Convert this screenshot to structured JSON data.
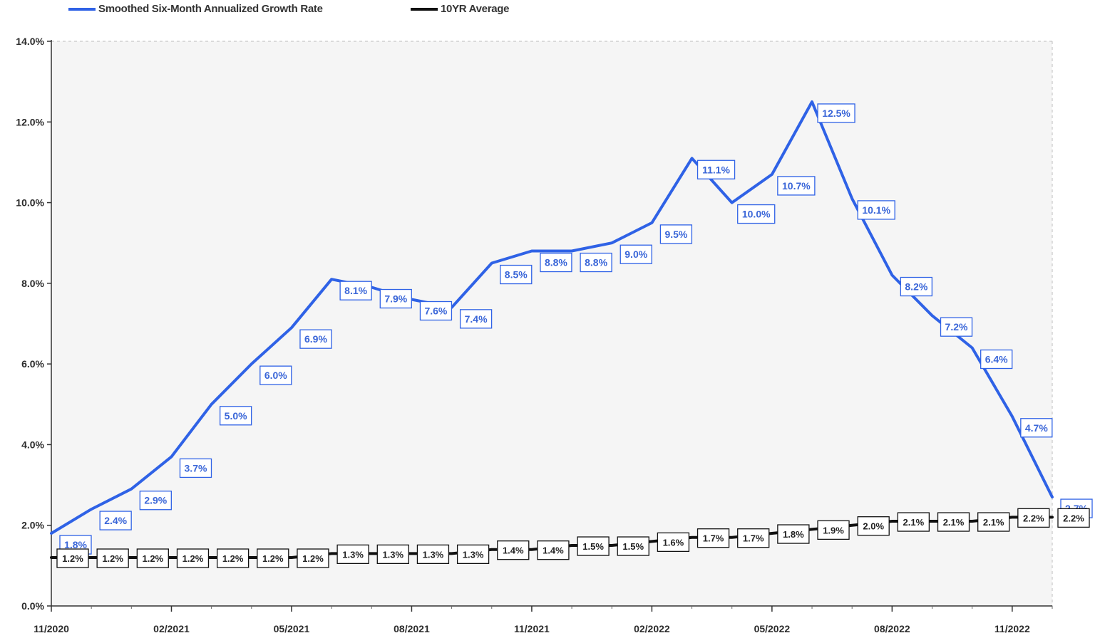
{
  "legend": {
    "series1_label": "Smoothed Six-Month Annualized Growth Rate",
    "series2_label": "10YR Average"
  },
  "colors": {
    "series1": "#2f62e6",
    "series2": "#111111",
    "plot_background": "#f5f5f5"
  },
  "chart_data": {
    "type": "line",
    "title": "",
    "xlabel": "",
    "ylabel": "",
    "ylim": [
      0,
      14
    ],
    "y_ticks": [
      "0.0%",
      "2.0%",
      "4.0%",
      "6.0%",
      "8.0%",
      "10.0%",
      "12.0%",
      "14.0%"
    ],
    "x_tick_labels": [
      "11/2020",
      "02/2021",
      "05/2021",
      "08/2021",
      "11/2021",
      "02/2022",
      "05/2022",
      "08/2022",
      "11/2022"
    ],
    "x": [
      "11/2020",
      "12/2020",
      "01/2021",
      "02/2021",
      "03/2021",
      "04/2021",
      "05/2021",
      "06/2021",
      "07/2021",
      "08/2021",
      "09/2021",
      "10/2021",
      "11/2021",
      "12/2021",
      "01/2022",
      "02/2022",
      "03/2022",
      "04/2022",
      "05/2022",
      "06/2022",
      "07/2022",
      "08/2022",
      "09/2022",
      "10/2022",
      "11/2022",
      "12/2022"
    ],
    "legend_position": "top-left",
    "grid": false,
    "series": [
      {
        "name": "Smoothed Six-Month Annualized Growth Rate",
        "values": [
          1.8,
          2.4,
          2.9,
          3.7,
          5.0,
          6.0,
          6.9,
          8.1,
          7.9,
          7.6,
          7.4,
          8.5,
          8.8,
          8.8,
          9.0,
          9.5,
          11.1,
          10.0,
          10.7,
          12.5,
          10.1,
          8.2,
          7.2,
          6.4,
          4.7,
          2.7
        ],
        "labels": [
          "1.8%",
          "2.4%",
          "2.9%",
          "3.7%",
          "5.0%",
          "6.0%",
          "6.9%",
          "8.1%",
          "7.9%",
          "7.6%",
          "7.4%",
          "8.5%",
          "8.8%",
          "8.8%",
          "9.0%",
          "9.5%",
          "11.1%",
          "10.0%",
          "10.7%",
          "12.5%",
          "10.1%",
          "8.2%",
          "7.2%",
          "6.4%",
          "4.7%",
          "2.7%"
        ]
      },
      {
        "name": "10YR Average",
        "values": [
          1.2,
          1.2,
          1.2,
          1.2,
          1.2,
          1.2,
          1.2,
          1.3,
          1.3,
          1.3,
          1.3,
          1.4,
          1.4,
          1.5,
          1.5,
          1.6,
          1.7,
          1.7,
          1.8,
          1.9,
          2.0,
          2.1,
          2.1,
          2.1,
          2.2,
          2.2
        ],
        "labels": [
          "1.2%",
          "1.2%",
          "1.2%",
          "1.2%",
          "1.2%",
          "1.2%",
          "1.2%",
          "1.3%",
          "1.3%",
          "1.3%",
          "1.3%",
          "1.4%",
          "1.4%",
          "1.5%",
          "1.5%",
          "1.6%",
          "1.7%",
          "1.7%",
          "1.8%",
          "1.9%",
          "2.0%",
          "2.1%",
          "2.1%",
          "2.1%",
          "2.2%",
          "2.2%"
        ]
      }
    ]
  }
}
